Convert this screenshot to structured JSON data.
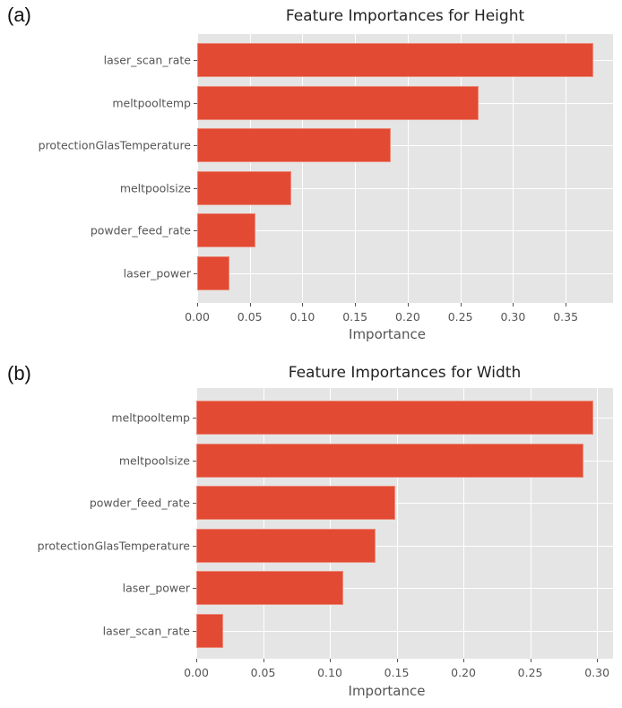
{
  "panels": [
    {
      "label": "(a)"
    },
    {
      "label": "(b)"
    }
  ],
  "chart_data": [
    {
      "type": "bar",
      "orientation": "horizontal",
      "title": "Feature Importances for Height",
      "xlabel": "Importance",
      "ylabel": "",
      "categories": [
        "laser_scan_rate",
        "meltpooltemp",
        "protectionGlasTemperature",
        "meltpoolsize",
        "powder_feed_rate",
        "laser_power"
      ],
      "values": [
        0.376,
        0.267,
        0.184,
        0.089,
        0.055,
        0.031
      ],
      "xticks": [
        "0.00",
        "0.05",
        "0.10",
        "0.15",
        "0.20",
        "0.25",
        "0.30",
        "0.35"
      ],
      "xlim": [
        0,
        0.395
      ],
      "grid": true,
      "bar_color": "#e24a33",
      "background_color": "#e5e5e5"
    },
    {
      "type": "bar",
      "orientation": "horizontal",
      "title": "Feature Importances for Width",
      "xlabel": "Importance",
      "ylabel": "",
      "categories": [
        "meltpooltemp",
        "meltpoolsize",
        "powder_feed_rate",
        "protectionGlasTemperature",
        "laser_power",
        "laser_scan_rate"
      ],
      "values": [
        0.297,
        0.29,
        0.149,
        0.134,
        0.11,
        0.02
      ],
      "xticks": [
        "0.00",
        "0.05",
        "0.10",
        "0.15",
        "0.20",
        "0.25",
        "0.30"
      ],
      "xlim": [
        0,
        0.312
      ],
      "grid": true,
      "bar_color": "#e24a33",
      "background_color": "#e5e5e5"
    }
  ]
}
